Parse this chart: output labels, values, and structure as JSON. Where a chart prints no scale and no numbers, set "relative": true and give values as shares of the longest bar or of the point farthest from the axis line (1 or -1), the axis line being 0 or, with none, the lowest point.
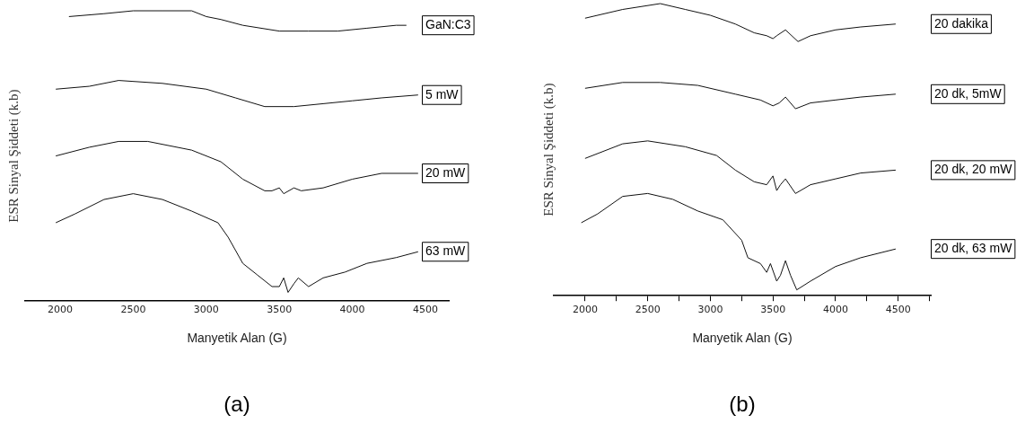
{
  "chart_data": [
    {
      "type": "line",
      "title": "(a)",
      "xlabel": "Manyetik Alan (G)",
      "ylabel": "ESR Sinyal Şiddeti (k.b)",
      "relative": true,
      "xlim": [
        1760,
        4660
      ],
      "xticks": [
        2000,
        2500,
        3000,
        3500,
        4000,
        4500
      ],
      "legend": false,
      "grid": false,
      "marker": "none",
      "series": [
        {
          "name": "GaN:C3",
          "color": "#111111",
          "x": [
            2060,
            2300,
            2500,
            2700,
            2900,
            3000,
            3100,
            3250,
            3500,
            3700,
            3900,
            4100,
            4300,
            4370
          ],
          "values": [
            0.98,
            0.99,
            1.0,
            1.0,
            1.0,
            0.98,
            0.97,
            0.95,
            0.93,
            0.93,
            0.93,
            0.94,
            0.95,
            0.95
          ]
        },
        {
          "name": "5 mW",
          "color": "#111111",
          "x": [
            1970,
            2200,
            2400,
            2700,
            3000,
            3200,
            3400,
            3600,
            3800,
            4000,
            4200,
            4450
          ],
          "values": [
            0.73,
            0.74,
            0.76,
            0.75,
            0.73,
            0.7,
            0.67,
            0.67,
            0.68,
            0.69,
            0.7,
            0.71
          ]
        },
        {
          "name": "20 mW",
          "color": "#111111",
          "x": [
            1970,
            2200,
            2400,
            2600,
            2900,
            3100,
            3250,
            3400,
            3450,
            3500,
            3530,
            3600,
            3650,
            3800,
            4000,
            4200,
            4450
          ],
          "values": [
            0.5,
            0.53,
            0.55,
            0.55,
            0.52,
            0.48,
            0.42,
            0.38,
            0.38,
            0.39,
            0.37,
            0.39,
            0.38,
            0.39,
            0.42,
            0.44,
            0.44
          ]
        },
        {
          "name": "63 mW",
          "color": "#111111",
          "x": [
            1970,
            2100,
            2300,
            2500,
            2700,
            2900,
            3080,
            3150,
            3250,
            3350,
            3450,
            3500,
            3530,
            3560,
            3600,
            3630,
            3700,
            3800,
            3950,
            4100,
            4300,
            4450
          ],
          "values": [
            0.27,
            0.3,
            0.35,
            0.37,
            0.35,
            0.31,
            0.27,
            0.22,
            0.13,
            0.09,
            0.05,
            0.05,
            0.08,
            0.03,
            0.06,
            0.08,
            0.05,
            0.08,
            0.1,
            0.13,
            0.15,
            0.17
          ]
        }
      ]
    },
    {
      "type": "line",
      "title": "(b)",
      "xlabel": "Manyetik Alan (G)",
      "ylabel": "ESR Sinyal Şiddeti (k.b)",
      "relative": true,
      "xlim": [
        1750,
        4760
      ],
      "xticks": [
        2000,
        {
          "value": 2250,
          "label": null
        },
        2500,
        {
          "value": 2750,
          "label": null
        },
        3000,
        {
          "value": 3250,
          "label": null
        },
        3500,
        {
          "value": 3750,
          "label": null
        },
        4000,
        {
          "value": 4250,
          "label": null
        },
        4500,
        {
          "value": 4750,
          "label": null
        }
      ],
      "legend": false,
      "grid": false,
      "marker": "none",
      "series": [
        {
          "name": "20 dakika",
          "color": "#111111",
          "x": [
            2000,
            2300,
            2600,
            2800,
            3000,
            3200,
            3350,
            3450,
            3500,
            3530,
            3600,
            3700,
            3800,
            4000,
            4200,
            4480
          ],
          "values": [
            0.95,
            0.98,
            1.0,
            0.98,
            0.96,
            0.93,
            0.9,
            0.89,
            0.88,
            0.89,
            0.91,
            0.87,
            0.89,
            0.91,
            0.92,
            0.93
          ]
        },
        {
          "name": "20 dk, 5mW",
          "color": "#111111",
          "x": [
            2000,
            2300,
            2600,
            2900,
            3200,
            3400,
            3500,
            3550,
            3600,
            3680,
            3800,
            4000,
            4200,
            4480
          ],
          "values": [
            0.71,
            0.73,
            0.73,
            0.72,
            0.69,
            0.67,
            0.65,
            0.66,
            0.68,
            0.64,
            0.66,
            0.67,
            0.68,
            0.69
          ]
        },
        {
          "name": "20 dk, 20 mW",
          "color": "#111111",
          "x": [
            2000,
            2300,
            2500,
            2800,
            3050,
            3200,
            3350,
            3450,
            3500,
            3530,
            3560,
            3600,
            3680,
            3800,
            4000,
            4200,
            4480
          ],
          "values": [
            0.47,
            0.52,
            0.53,
            0.51,
            0.48,
            0.43,
            0.39,
            0.38,
            0.41,
            0.36,
            0.38,
            0.4,
            0.35,
            0.38,
            0.4,
            0.42,
            0.43
          ]
        },
        {
          "name": "20 dk, 63 mW",
          "color": "#111111",
          "x": [
            1970,
            2100,
            2300,
            2500,
            2700,
            2900,
            3100,
            3250,
            3300,
            3400,
            3450,
            3480,
            3530,
            3560,
            3600,
            3640,
            3690,
            3800,
            4000,
            4200,
            4480
          ],
          "values": [
            0.25,
            0.28,
            0.34,
            0.35,
            0.33,
            0.29,
            0.26,
            0.19,
            0.13,
            0.11,
            0.08,
            0.11,
            0.05,
            0.07,
            0.12,
            0.07,
            0.02,
            0.05,
            0.1,
            0.13,
            0.16
          ]
        }
      ]
    }
  ]
}
